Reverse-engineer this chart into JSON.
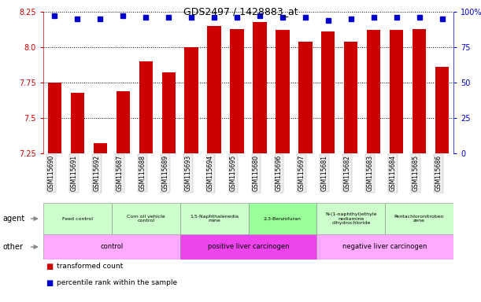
{
  "title": "GDS2497 / 1428883_at",
  "samples": [
    "GSM115690",
    "GSM115691",
    "GSM115692",
    "GSM115687",
    "GSM115688",
    "GSM115689",
    "GSM115693",
    "GSM115694",
    "GSM115695",
    "GSM115680",
    "GSM115696",
    "GSM115697",
    "GSM115681",
    "GSM115682",
    "GSM115683",
    "GSM115684",
    "GSM115685",
    "GSM115686"
  ],
  "transformed_count": [
    7.75,
    7.68,
    7.32,
    7.69,
    7.9,
    7.82,
    8.0,
    8.15,
    8.13,
    8.18,
    8.12,
    8.04,
    8.11,
    8.04,
    8.12,
    8.12,
    8.13,
    7.86
  ],
  "percentile_rank": [
    97,
    95,
    95,
    97,
    96,
    96,
    96,
    96,
    96,
    97,
    96,
    96,
    94,
    95,
    96,
    96,
    96,
    95
  ],
  "ylim_left": [
    7.25,
    8.25
  ],
  "ylim_right": [
    0,
    100
  ],
  "yticks_left": [
    7.25,
    7.5,
    7.75,
    8.0,
    8.25
  ],
  "yticks_right": [
    0,
    25,
    50,
    75,
    100
  ],
  "bar_color": "#cc0000",
  "dot_color": "#0000cc",
  "agent_groups": [
    {
      "label": "Feed control",
      "start": 0,
      "end": 3,
      "color": "#ccffcc"
    },
    {
      "label": "Corn oil vehicle\ncontrol",
      "start": 3,
      "end": 6,
      "color": "#ccffcc"
    },
    {
      "label": "1,5-Naphthalenedia\nmine",
      "start": 6,
      "end": 9,
      "color": "#ccffcc"
    },
    {
      "label": "2,3-Benzofuran",
      "start": 9,
      "end": 12,
      "color": "#99ff99"
    },
    {
      "label": "N-(1-naphthyl)ethyle\nnediamine\ndihydrochloride",
      "start": 12,
      "end": 15,
      "color": "#ccffcc"
    },
    {
      "label": "Pentachloronitroben\nzene",
      "start": 15,
      "end": 18,
      "color": "#ccffcc"
    }
  ],
  "other_groups": [
    {
      "label": "control",
      "start": 0,
      "end": 6,
      "color": "#ffaaff"
    },
    {
      "label": "positive liver carcinogen",
      "start": 6,
      "end": 12,
      "color": "#ee44ee"
    },
    {
      "label": "negative liver carcinogen",
      "start": 12,
      "end": 18,
      "color": "#ffaaff"
    }
  ]
}
